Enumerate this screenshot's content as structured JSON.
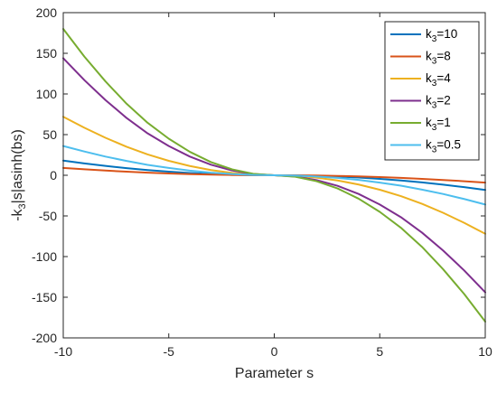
{
  "chart_data": {
    "type": "line",
    "title": "",
    "xlabel": "Parameter s",
    "ylabel": "-k₃|s|asinh(bs)",
    "xlim": [
      -10,
      10
    ],
    "ylim": [
      -200,
      200
    ],
    "xticks": [
      -10,
      -5,
      0,
      5,
      10
    ],
    "yticks": [
      200,
      150,
      100,
      50,
      0,
      -50,
      -100,
      -150,
      -200
    ],
    "grid": false,
    "legend_position": "top-right",
    "x": [
      -10,
      -9,
      -8,
      -7,
      -6,
      -5,
      -4,
      -3,
      -2,
      -1,
      0,
      1,
      2,
      3,
      4,
      5,
      6,
      7,
      8,
      9,
      10
    ],
    "series": [
      {
        "name": "k3=10",
        "legend_base": "k",
        "legend_sub": "3",
        "legend_value": "=10",
        "color": "#0072BD",
        "values": [
          18,
          14.6,
          11.5,
          8.8,
          6.4,
          4.5,
          2.8,
          1.6,
          0.7,
          0.2,
          0,
          -0.2,
          -0.7,
          -1.6,
          -2.8,
          -4.5,
          -6.4,
          -8.8,
          -11.5,
          -14.6,
          -18
        ]
      },
      {
        "name": "k3=8",
        "legend_base": "k",
        "legend_sub": "3",
        "legend_value": "=8",
        "color": "#D95319",
        "values": [
          9,
          7.3,
          5.8,
          4.4,
          3.2,
          2.25,
          1.4,
          0.8,
          0.35,
          0.1,
          0,
          -0.1,
          -0.35,
          -0.8,
          -1.4,
          -2.25,
          -3.2,
          -4.4,
          -5.8,
          -7.3,
          -9
        ]
      },
      {
        "name": "k3=4",
        "legend_base": "k",
        "legend_sub": "3",
        "legend_value": "=4",
        "color": "#EDB120",
        "values": [
          72,
          58.5,
          46.1,
          35.1,
          25.6,
          17.8,
          11.4,
          6.4,
          2.9,
          0.7,
          0,
          -0.7,
          -2.9,
          -6.4,
          -11.4,
          -17.8,
          -25.6,
          -35.1,
          -46.1,
          -58.5,
          -72
        ]
      },
      {
        "name": "k3=2",
        "legend_base": "k",
        "legend_sub": "3",
        "legend_value": "=2",
        "color": "#7E2F8E",
        "values": [
          144,
          117,
          92.5,
          70.5,
          51.5,
          36,
          23,
          13,
          5.9,
          1.5,
          0,
          -1.5,
          -5.9,
          -13,
          -23,
          -36,
          -51.5,
          -70.5,
          -92.5,
          -117,
          -144
        ]
      },
      {
        "name": "k3=1",
        "legend_base": "k",
        "legend_sub": "3",
        "legend_value": "=1",
        "color": "#77AC30",
        "values": [
          180,
          146,
          115.5,
          88,
          64.5,
          45,
          28.8,
          16.2,
          7.3,
          1.8,
          0,
          -1.8,
          -7.3,
          -16.2,
          -28.8,
          -45,
          -64.5,
          -88,
          -115.5,
          -146,
          -180
        ]
      },
      {
        "name": "k3=0.5",
        "legend_base": "k",
        "legend_sub": "3",
        "legend_value": "=0.5",
        "color": "#4DBEEE",
        "values": [
          36,
          29.2,
          23,
          17.6,
          12.8,
          9,
          5.7,
          3.2,
          1.5,
          0.4,
          0,
          -0.4,
          -1.5,
          -3.2,
          -5.7,
          -9,
          -12.8,
          -17.6,
          -23,
          -29.2,
          -36
        ]
      }
    ]
  }
}
